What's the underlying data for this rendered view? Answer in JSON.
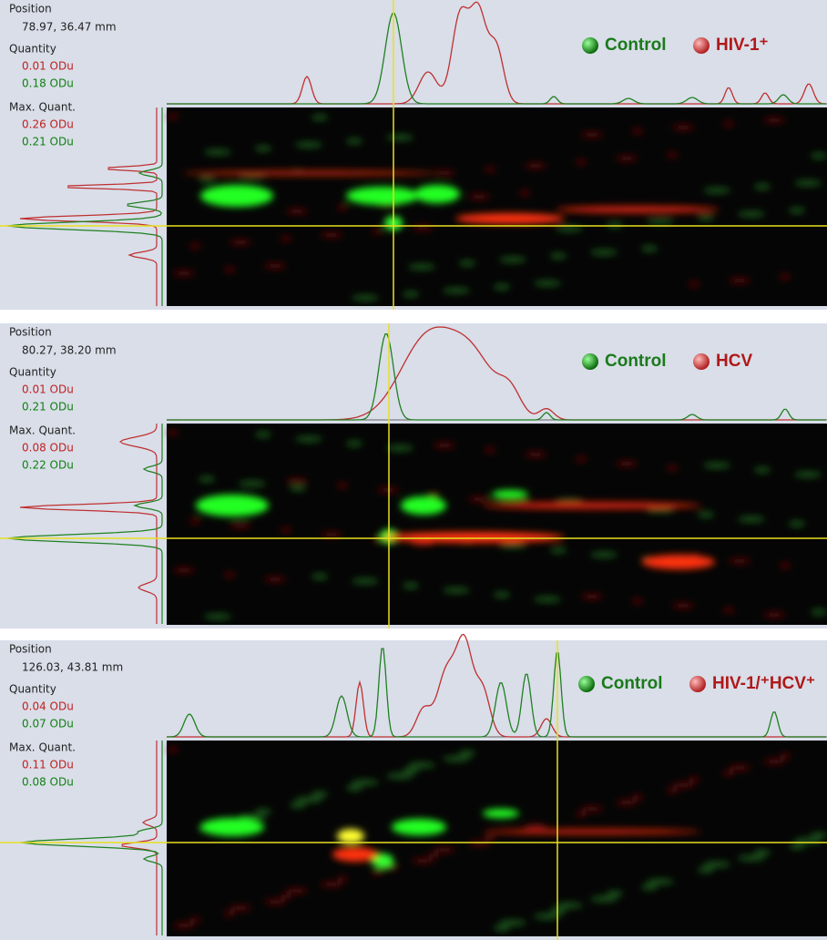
{
  "panels": [
    {
      "position_label": "Position",
      "position": "78.97, 36.47 mm",
      "quantity_label": "Quantity",
      "quantity_red": "0.01 ODu",
      "quantity_green": "0.18 ODu",
      "max_label": "Max. Quant.",
      "max_red": "0.26 ODu",
      "max_green": "0.21 ODu",
      "legend_control": "Control",
      "legend_sample": "HIV-1⁺"
    },
    {
      "position_label": "Position",
      "position": "80.27, 38.20 mm",
      "quantity_label": "Quantity",
      "quantity_red": "0.01 ODu",
      "quantity_green": "0.21 ODu",
      "max_label": "Max. Quant.",
      "max_red": "0.08 ODu",
      "max_green": "0.22 ODu",
      "legend_control": "Control",
      "legend_sample": "HCV"
    },
    {
      "position_label": "Position",
      "position": "126.03, 43.81 mm",
      "quantity_label": "Quantity",
      "quantity_red": "0.04 ODu",
      "quantity_green": "0.07 ODu",
      "max_label": "Max. Quant.",
      "max_red": "0.11 ODu",
      "max_green": "0.08 ODu",
      "legend_control": "Control",
      "legend_sample": "HIV-1/⁺HCV⁺"
    }
  ]
}
